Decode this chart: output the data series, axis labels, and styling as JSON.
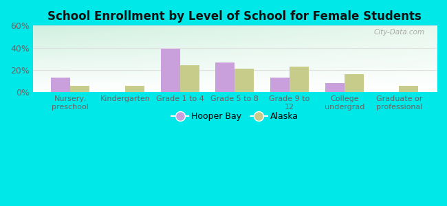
{
  "title": "School Enrollment by Level of School for Female Students",
  "categories": [
    "Nursery,\npreschool",
    "Kindergarten",
    "Grade 1 to 4",
    "Grade 5 to 8",
    "Grade 9 to\n12",
    "College\nundergrad",
    "Graduate or\nprofessional"
  ],
  "hooper_bay": [
    13,
    0,
    39,
    27,
    13,
    8,
    0
  ],
  "alaska": [
    6,
    6,
    24,
    21,
    23,
    16,
    6
  ],
  "hooper_bay_color": "#c9a0dc",
  "alaska_color": "#c8cc8a",
  "ylim": [
    0,
    60
  ],
  "yticks": [
    0,
    20,
    40,
    60
  ],
  "ytick_labels": [
    "0%",
    "20%",
    "40%",
    "60%"
  ],
  "background_color": "#00e8e8",
  "gradient_top_left": "#d0f0e0",
  "gradient_bottom_right": "#ffffff",
  "bar_width": 0.35,
  "legend_hooper": "Hooper Bay",
  "legend_alaska": "Alaska",
  "watermark": "City-Data.com"
}
